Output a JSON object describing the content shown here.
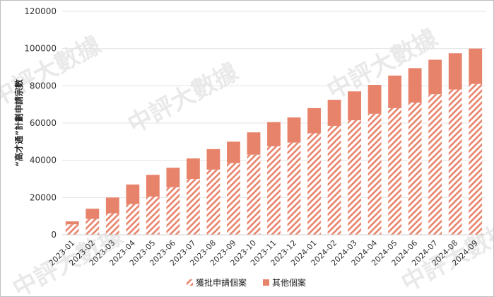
{
  "watermark": "中評大數據",
  "chart_data": {
    "type": "bar",
    "stacked": true,
    "ylabel": "“高才通”計劃申請宗數",
    "xlabel": "",
    "ylim": [
      0,
      120000
    ],
    "yticks": [
      0,
      20000,
      40000,
      60000,
      80000,
      100000,
      120000
    ],
    "grid": true,
    "legend_position": "bottom",
    "categories": [
      "2023-01",
      "2023-02",
      "2023-03",
      "2023-04",
      "2023-05",
      "2023-06",
      "2023-07",
      "2023-08",
      "2023-09",
      "2023-10",
      "2023-11",
      "2023-12",
      "2024-01",
      "2024-02",
      "2024-03",
      "2024-04",
      "2024-05",
      "2024-06",
      "2024-07",
      "2024-08",
      "2024-09"
    ],
    "series": [
      {
        "name": "獲批申請個案",
        "pattern": "hatched",
        "color": "#e8836b",
        "values": [
          5600,
          8500,
          11500,
          16500,
          20500,
          25500,
          30000,
          35000,
          38500,
          43000,
          47500,
          49500,
          54500,
          58500,
          61500,
          65000,
          68000,
          71000,
          75500,
          78000,
          81000
        ]
      },
      {
        "name": "其他個案",
        "pattern": "solid",
        "color": "#e8836b",
        "values": [
          1600,
          5500,
          8500,
          10500,
          11700,
          10500,
          11000,
          11000,
          11500,
          12000,
          13000,
          13500,
          13500,
          14000,
          15500,
          15500,
          17500,
          18500,
          18500,
          19500,
          19000
        ]
      }
    ]
  }
}
